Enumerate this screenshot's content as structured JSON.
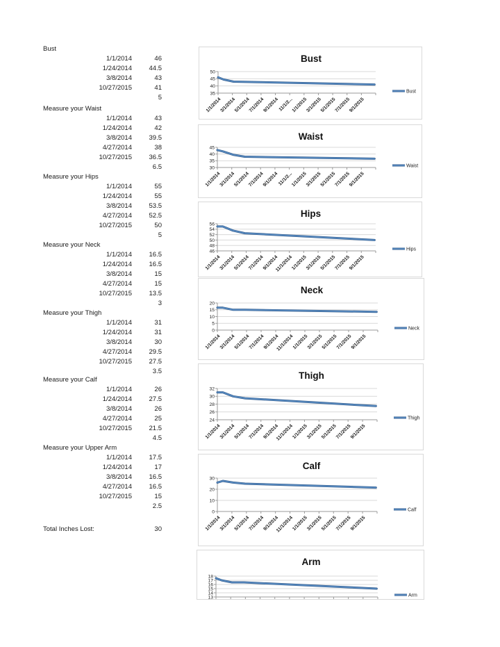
{
  "colors": {
    "line": "#5B8EC4",
    "line_dark": "#2F5A8C",
    "grid": "#D9D9D9",
    "axis": "#9A9A9A",
    "chart_border": "#D9D9D9",
    "text": "#1A1A1A"
  },
  "measurement_table": {
    "sections": [
      {
        "label": "Bust",
        "rows": [
          [
            "1/1/2014",
            "46"
          ],
          [
            "1/24/2014",
            "44.5"
          ],
          [
            "3/8/2014",
            "43"
          ],
          [
            "10/27/2015",
            "41"
          ]
        ],
        "inches_lost": "5"
      },
      {
        "label": "Measure your Waist",
        "rows": [
          [
            "1/1/2014",
            "43"
          ],
          [
            "1/24/2014",
            "42"
          ],
          [
            "3/8/2014",
            "39.5"
          ],
          [
            "4/27/2014",
            "38"
          ],
          [
            "10/27/2015",
            "36.5"
          ]
        ],
        "inches_lost": "6.5"
      },
      {
        "label": "Measure your Hips",
        "rows": [
          [
            "1/1/2014",
            "55"
          ],
          [
            "1/24/2014",
            "55"
          ],
          [
            "3/8/2014",
            "53.5"
          ],
          [
            "4/27/2014",
            "52.5"
          ],
          [
            "10/27/2015",
            "50"
          ]
        ],
        "inches_lost": "5"
      },
      {
        "label": "Measure your Neck",
        "rows": [
          [
            "1/1/2014",
            "16.5"
          ],
          [
            "1/24/2014",
            "16.5"
          ],
          [
            "3/8/2014",
            "15"
          ],
          [
            "4/27/2014",
            "15"
          ],
          [
            "10/27/2015",
            "13.5"
          ]
        ],
        "inches_lost": "3"
      },
      {
        "label": "Measure your Thigh",
        "rows": [
          [
            "1/1/2014",
            "31"
          ],
          [
            "1/24/2014",
            "31"
          ],
          [
            "3/8/2014",
            "30"
          ],
          [
            "4/27/2014",
            "29.5"
          ],
          [
            "10/27/2015",
            "27.5"
          ]
        ],
        "inches_lost": "3.5"
      },
      {
        "label": "Measure your Calf",
        "rows": [
          [
            "1/1/2014",
            "26"
          ],
          [
            "1/24/2014",
            "27.5"
          ],
          [
            "3/8/2014",
            "26"
          ],
          [
            "4/27/2014",
            "25"
          ],
          [
            "10/27/2015",
            "21.5"
          ]
        ],
        "inches_lost": "4.5"
      },
      {
        "label": "Measure your Upper Arm",
        "rows": [
          [
            "1/1/2014",
            "17.5"
          ],
          [
            "1/24/2014",
            "17"
          ],
          [
            "3/8/2014",
            "16.5"
          ],
          [
            "4/27/2014",
            "16.5"
          ],
          [
            "10/27/2015",
            "15"
          ]
        ],
        "inches_lost": "2.5"
      }
    ],
    "total": {
      "label": "Total Inches Lost:",
      "value": "30"
    }
  },
  "chart_data": [
    {
      "type": "line",
      "title": "Bust",
      "legend": "Bust",
      "legend_position": "right",
      "ylim": [
        35,
        50
      ],
      "y_step": 5,
      "grid": true,
      "x_range": [
        "1/1/2014",
        "11/1/2015"
      ],
      "x_tick_labels": [
        "1/1/2014",
        "3/1/2014",
        "5/1/2014",
        "7/1/2014",
        "9/1/2014",
        "11/1/2...",
        "1/1/2015",
        "3/1/2015",
        "5/1/2015",
        "7/1/2015",
        "9/1/2015"
      ],
      "series": [
        {
          "name": "Bust",
          "points": [
            [
              "1/1/2014",
              46
            ],
            [
              "1/24/2014",
              44.5
            ],
            [
              "3/8/2014",
              43
            ],
            [
              "10/27/2015",
              41
            ]
          ]
        }
      ]
    },
    {
      "type": "line",
      "title": "Waist",
      "legend": "Waist",
      "legend_position": "right",
      "ylim": [
        30,
        45
      ],
      "y_step": 5,
      "grid": true,
      "x_range": [
        "1/1/2014",
        "11/1/2015"
      ],
      "x_tick_labels": [
        "1/1/2014",
        "3/1/2014",
        "5/1/2014",
        "7/1/2014",
        "9/1/2014",
        "11/1/2...",
        "1/1/2015",
        "3/1/2015",
        "5/1/2015",
        "7/1/2015",
        "9/1/2015"
      ],
      "series": [
        {
          "name": "Waist",
          "points": [
            [
              "1/1/2014",
              43
            ],
            [
              "1/24/2014",
              42
            ],
            [
              "3/8/2014",
              39.5
            ],
            [
              "4/27/2014",
              38
            ],
            [
              "10/27/2015",
              36.5
            ]
          ]
        }
      ]
    },
    {
      "type": "line",
      "title": "Hips",
      "legend": "Hips",
      "legend_position": "right",
      "ylim": [
        46,
        56
      ],
      "y_step": 2,
      "grid": true,
      "x_range": [
        "1/1/2014",
        "11/1/2015"
      ],
      "x_tick_labels": [
        "1/1/2014",
        "3/1/2014",
        "5/1/2014",
        "7/1/2014",
        "9/1/2014",
        "11/1/2014",
        "1/1/2015",
        "3/1/2015",
        "5/1/2015",
        "7/1/2015",
        "9/1/2015"
      ],
      "series": [
        {
          "name": "Hips",
          "points": [
            [
              "1/1/2014",
              55
            ],
            [
              "1/24/2014",
              55
            ],
            [
              "3/8/2014",
              53.5
            ],
            [
              "4/27/2014",
              52.5
            ],
            [
              "10/27/2015",
              50
            ]
          ]
        }
      ]
    },
    {
      "type": "line",
      "title": "Neck",
      "legend": "Neck",
      "legend_position": "right",
      "ylim": [
        0,
        20
      ],
      "y_step": 5,
      "grid": true,
      "x_range": [
        "1/1/2014",
        "11/1/2015"
      ],
      "x_tick_labels": [
        "1/1/2014",
        "3/1/2014",
        "5/1/2014",
        "7/1/2014",
        "9/1/2014",
        "11/1/2014",
        "1/1/2015",
        "3/1/2015",
        "5/1/2015",
        "7/1/2015",
        "9/1/2015"
      ],
      "series": [
        {
          "name": "Neck",
          "points": [
            [
              "1/1/2014",
              16.5
            ],
            [
              "1/24/2014",
              16.5
            ],
            [
              "3/8/2014",
              15
            ],
            [
              "4/27/2014",
              15
            ],
            [
              "10/27/2015",
              13.5
            ]
          ]
        }
      ]
    },
    {
      "type": "line",
      "title": "Thigh",
      "legend": "Thigh",
      "legend_position": "right",
      "ylim": [
        24,
        32
      ],
      "y_step": 2,
      "grid": true,
      "x_range": [
        "1/1/2014",
        "11/1/2015"
      ],
      "x_tick_labels": [
        "1/1/2014",
        "3/1/2014",
        "5/1/2014",
        "7/1/2014",
        "9/1/2014",
        "11/1/2014",
        "1/1/2015",
        "3/1/2015",
        "5/1/2015",
        "7/1/2015",
        "9/1/2015"
      ],
      "series": [
        {
          "name": "Thigh",
          "points": [
            [
              "1/1/2014",
              31
            ],
            [
              "1/24/2014",
              31
            ],
            [
              "3/8/2014",
              30
            ],
            [
              "4/27/2014",
              29.5
            ],
            [
              "10/27/2015",
              27.5
            ]
          ]
        }
      ]
    },
    {
      "type": "line",
      "title": "Calf",
      "legend": "Calf",
      "legend_position": "right",
      "ylim": [
        0,
        30
      ],
      "y_step": 10,
      "grid": true,
      "x_range": [
        "1/1/2014",
        "11/1/2015"
      ],
      "x_tick_labels": [
        "1/1/2014",
        "3/1/2014",
        "5/1/2014",
        "7/1/2014",
        "9/1/2014",
        "11/1/2014",
        "1/1/2015",
        "3/1/2015",
        "5/1/2015",
        "7/1/2015",
        "9/1/2015"
      ],
      "series": [
        {
          "name": "Calf",
          "points": [
            [
              "1/1/2014",
              26
            ],
            [
              "1/24/2014",
              27.5
            ],
            [
              "3/8/2014",
              26
            ],
            [
              "4/27/2014",
              25
            ],
            [
              "10/27/2015",
              21.5
            ]
          ]
        }
      ]
    },
    {
      "type": "line",
      "title": "Arm",
      "legend": "Arm",
      "legend_position": "right",
      "ylim": [
        13,
        18
      ],
      "y_step": 1,
      "grid": true,
      "x_range": [
        "1/1/2014",
        "11/1/2015"
      ],
      "x_tick_labels": [],
      "series": [
        {
          "name": "Arm",
          "points": [
            [
              "1/1/2014",
              17.5
            ],
            [
              "1/24/2014",
              17
            ],
            [
              "3/8/2014",
              16.5
            ],
            [
              "4/27/2014",
              16.5
            ],
            [
              "10/27/2015",
              15
            ]
          ]
        }
      ]
    }
  ]
}
